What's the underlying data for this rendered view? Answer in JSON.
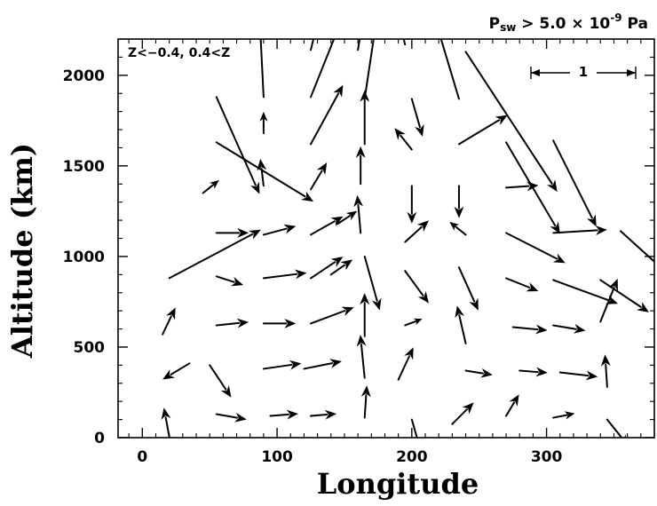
{
  "chart_data": {
    "type": "vector-field",
    "xlabel": "Longitude",
    "ylabel": "Altitude (km)",
    "xlim": [
      -18,
      380
    ],
    "ylim": [
      0,
      2200
    ],
    "xticks": [
      0,
      100,
      200,
      300
    ],
    "yticks": [
      0,
      500,
      1000,
      1500,
      2000
    ],
    "annotation": "P_sw > 5.0×10^-9 Pa",
    "annotation_parts": {
      "p": "P",
      "sub": "sw",
      "mid": " > 5.0 × 10",
      "exp": "-9",
      "unit": "  Pa"
    },
    "region_label": "Z<−0.4, 0.4<Z",
    "reference_label": "1",
    "reference_vector": {
      "x": 290,
      "y": 1960,
      "u": 1.0,
      "v": 0.0
    },
    "vector_scale_lon_per_unit": 80,
    "vectors": [
      {
        "x": 20,
        "y": 5,
        "u": -0.05,
        "v": 0.27
      },
      {
        "x": 55,
        "y": 130,
        "u": 0.28,
        "v": -0.05
      },
      {
        "x": 95,
        "y": 120,
        "u": 0.26,
        "v": 0.02
      },
      {
        "x": 125,
        "y": 120,
        "u": 0.24,
        "v": 0.02
      },
      {
        "x": 165,
        "y": 110,
        "u": 0.02,
        "v": 0.3
      },
      {
        "x": 200,
        "y": 100,
        "u": 0.1,
        "v": -0.35
      },
      {
        "x": 230,
        "y": 75,
        "u": 0.2,
        "v": 0.2
      },
      {
        "x": 270,
        "y": 120,
        "u": 0.12,
        "v": 0.2
      },
      {
        "x": 305,
        "y": 110,
        "u": 0.2,
        "v": 0.04
      },
      {
        "x": 345,
        "y": 100,
        "u": 0.2,
        "v": -0.25
      },
      {
        "x": 35,
        "y": 410,
        "u": -0.25,
        "v": -0.15
      },
      {
        "x": 50,
        "y": 400,
        "u": 0.2,
        "v": -0.3
      },
      {
        "x": 90,
        "y": 380,
        "u": 0.35,
        "v": 0.05
      },
      {
        "x": 120,
        "y": 380,
        "u": 0.35,
        "v": 0.07
      },
      {
        "x": 165,
        "y": 330,
        "u": -0.04,
        "v": 0.4
      },
      {
        "x": 190,
        "y": 320,
        "u": 0.14,
        "v": 0.3
      },
      {
        "x": 240,
        "y": 370,
        "u": 0.25,
        "v": -0.04
      },
      {
        "x": 280,
        "y": 370,
        "u": 0.26,
        "v": -0.02
      },
      {
        "x": 310,
        "y": 360,
        "u": 0.35,
        "v": -0.04
      },
      {
        "x": 345,
        "y": 280,
        "u": -0.02,
        "v": 0.3
      },
      {
        "x": 15,
        "y": 570,
        "u": 0.12,
        "v": 0.25
      },
      {
        "x": 55,
        "y": 620,
        "u": 0.3,
        "v": 0.03
      },
      {
        "x": 90,
        "y": 630,
        "u": 0.3,
        "v": 0.0
      },
      {
        "x": 125,
        "y": 630,
        "u": 0.4,
        "v": 0.15
      },
      {
        "x": 165,
        "y": 560,
        "u": 0.0,
        "v": 0.4
      },
      {
        "x": 195,
        "y": 620,
        "u": 0.16,
        "v": 0.06
      },
      {
        "x": 240,
        "y": 520,
        "u": -0.08,
        "v": 0.35
      },
      {
        "x": 275,
        "y": 610,
        "u": 0.32,
        "v": -0.03
      },
      {
        "x": 305,
        "y": 620,
        "u": 0.3,
        "v": -0.05
      },
      {
        "x": 340,
        "y": 640,
        "u": 0.16,
        "v": 0.4
      },
      {
        "x": 20,
        "y": 880,
        "u": 0.85,
        "v": 0.45
      },
      {
        "x": 55,
        "y": 890,
        "u": 0.25,
        "v": -0.08
      },
      {
        "x": 90,
        "y": 880,
        "u": 0.4,
        "v": 0.05
      },
      {
        "x": 125,
        "y": 880,
        "u": 0.3,
        "v": 0.2
      },
      {
        "x": 140,
        "y": 900,
        "u": 0.2,
        "v": 0.14
      },
      {
        "x": 165,
        "y": 1000,
        "u": 0.14,
        "v": -0.5
      },
      {
        "x": 195,
        "y": 920,
        "u": 0.22,
        "v": -0.3
      },
      {
        "x": 235,
        "y": 940,
        "u": 0.18,
        "v": -0.4
      },
      {
        "x": 270,
        "y": 880,
        "u": 0.3,
        "v": -0.12
      },
      {
        "x": 305,
        "y": 870,
        "u": 0.6,
        "v": -0.22
      },
      {
        "x": 340,
        "y": 870,
        "u": 0.45,
        "v": -0.3
      },
      {
        "x": 55,
        "y": 1130,
        "u": 0.3,
        "v": 0.0
      },
      {
        "x": 90,
        "y": 1120,
        "u": 0.3,
        "v": 0.08
      },
      {
        "x": 125,
        "y": 1120,
        "u": 0.3,
        "v": 0.17
      },
      {
        "x": 145,
        "y": 1180,
        "u": 0.18,
        "v": 0.12
      },
      {
        "x": 162,
        "y": 1130,
        "u": -0.03,
        "v": 0.35
      },
      {
        "x": 195,
        "y": 1080,
        "u": 0.22,
        "v": 0.2
      },
      {
        "x": 240,
        "y": 1120,
        "u": -0.15,
        "v": 0.12
      },
      {
        "x": 270,
        "y": 1130,
        "u": 0.55,
        "v": -0.28
      },
      {
        "x": 305,
        "y": 1130,
        "u": 0.5,
        "v": 0.03
      },
      {
        "x": 355,
        "y": 1140,
        "u": 0.75,
        "v": -0.68
      },
      {
        "x": 45,
        "y": 1350,
        "u": 0.15,
        "v": 0.12
      },
      {
        "x": 90,
        "y": 1390,
        "u": -0.03,
        "v": 0.25
      },
      {
        "x": 125,
        "y": 1370,
        "u": 0.15,
        "v": 0.25
      },
      {
        "x": 162,
        "y": 1400,
        "u": 0.0,
        "v": 0.35
      },
      {
        "x": 200,
        "y": 1390,
        "u": 0.0,
        "v": -0.35
      },
      {
        "x": 235,
        "y": 1390,
        "u": 0.0,
        "v": -0.3
      },
      {
        "x": 270,
        "y": 1380,
        "u": 0.3,
        "v": 0.02
      },
      {
        "x": 305,
        "y": 1640,
        "u": 0.4,
        "v": -0.8
      },
      {
        "x": 55,
        "y": 1630,
        "u": 0.9,
        "v": -0.55
      },
      {
        "x": 55,
        "y": 1880,
        "u": 0.4,
        "v": -0.9
      },
      {
        "x": 90,
        "y": 1680,
        "u": 0.0,
        "v": 0.2
      },
      {
        "x": 125,
        "y": 1620,
        "u": 0.3,
        "v": 0.55
      },
      {
        "x": 165,
        "y": 1620,
        "u": 0.0,
        "v": 0.5
      },
      {
        "x": 200,
        "y": 1590,
        "u": -0.16,
        "v": 0.2
      },
      {
        "x": 235,
        "y": 1620,
        "u": 0.45,
        "v": 0.27
      },
      {
        "x": 270,
        "y": 1630,
        "u": 0.5,
        "v": -0.85
      },
      {
        "x": 90,
        "y": 1880,
        "u": -0.05,
        "v": 1.0
      },
      {
        "x": 125,
        "y": 1880,
        "u": 0.3,
        "v": 0.75
      },
      {
        "x": 165,
        "y": 1870,
        "u": 0.12,
        "v": 0.8
      },
      {
        "x": 200,
        "y": 1870,
        "u": 0.1,
        "v": -0.35
      },
      {
        "x": 235,
        "y": 1870,
        "u": -0.3,
        "v": 1.0
      },
      {
        "x": 240,
        "y": 2130,
        "u": 0.85,
        "v": -1.3
      },
      {
        "x": 125,
        "y": 2140,
        "u": 0.1,
        "v": 0.4
      },
      {
        "x": 195,
        "y": 2170,
        "u": -0.05,
        "v": 0.2
      },
      {
        "x": 160,
        "y": 2140,
        "u": 0.05,
        "v": 0.3
      }
    ]
  }
}
